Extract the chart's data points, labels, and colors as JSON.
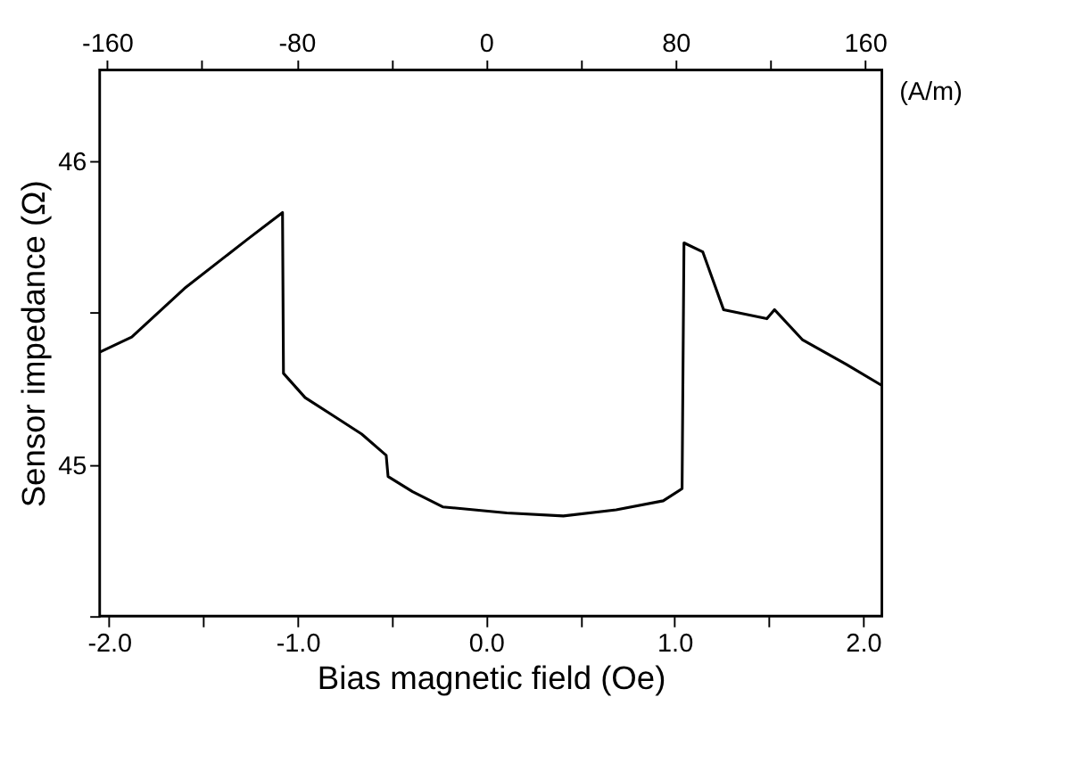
{
  "chart_data": {
    "type": "line",
    "xlabel": "Bias magnetic field (Oe)",
    "ylabel": "Sensor impedance (Ω)",
    "x2label": "(A/m)",
    "x": [
      -2.05,
      -1.88,
      -1.6,
      -1.27,
      -1.08,
      -1.075,
      -0.96,
      -0.81,
      -0.66,
      -0.53,
      -0.52,
      -0.39,
      -0.23,
      0.11,
      0.41,
      0.69,
      0.94,
      1.04,
      1.05,
      1.15,
      1.26,
      1.49,
      1.53,
      1.68,
      1.91,
      2.1
    ],
    "series": [
      {
        "color": "#000000",
        "values": [
          45.37,
          45.42,
          45.58,
          45.74,
          45.83,
          45.3,
          45.22,
          45.16,
          45.1,
          45.03,
          44.96,
          44.91,
          44.86,
          44.84,
          44.83,
          44.85,
          44.88,
          44.92,
          45.73,
          45.7,
          45.51,
          45.48,
          45.51,
          45.41,
          45.33,
          45.26
        ]
      }
    ],
    "xlim": [
      -2.05,
      2.1
    ],
    "xticks": [
      {
        "value": -2,
        "label": "-2.0"
      },
      {
        "value": -1.5,
        "label": null
      },
      {
        "value": -1,
        "label": "-1.0"
      },
      {
        "value": -0.5,
        "label": null
      },
      {
        "value": 0,
        "label": "0.0"
      },
      {
        "value": 0.5,
        "label": null
      },
      {
        "value": 1,
        "label": "1.0"
      },
      {
        "value": 1.5,
        "label": null
      },
      {
        "value": 2,
        "label": "2.0"
      }
    ],
    "x2lim": [
      -163.1,
      167.1
    ],
    "x2ticks": [
      -160,
      {
        "value": -120,
        "label": null
      },
      -80,
      {
        "value": -40,
        "label": null
      },
      0,
      {
        "value": 40,
        "label": null
      },
      80,
      {
        "value": 120,
        "label": null
      },
      160
    ],
    "ylim": [
      44.5,
      46.3
    ],
    "yticks": [
      {
        "value": 44.5,
        "label": null
      },
      45,
      {
        "value": 45.5,
        "label": null
      },
      46
    ],
    "grid": false,
    "marker": "none",
    "line_style": "solid"
  }
}
